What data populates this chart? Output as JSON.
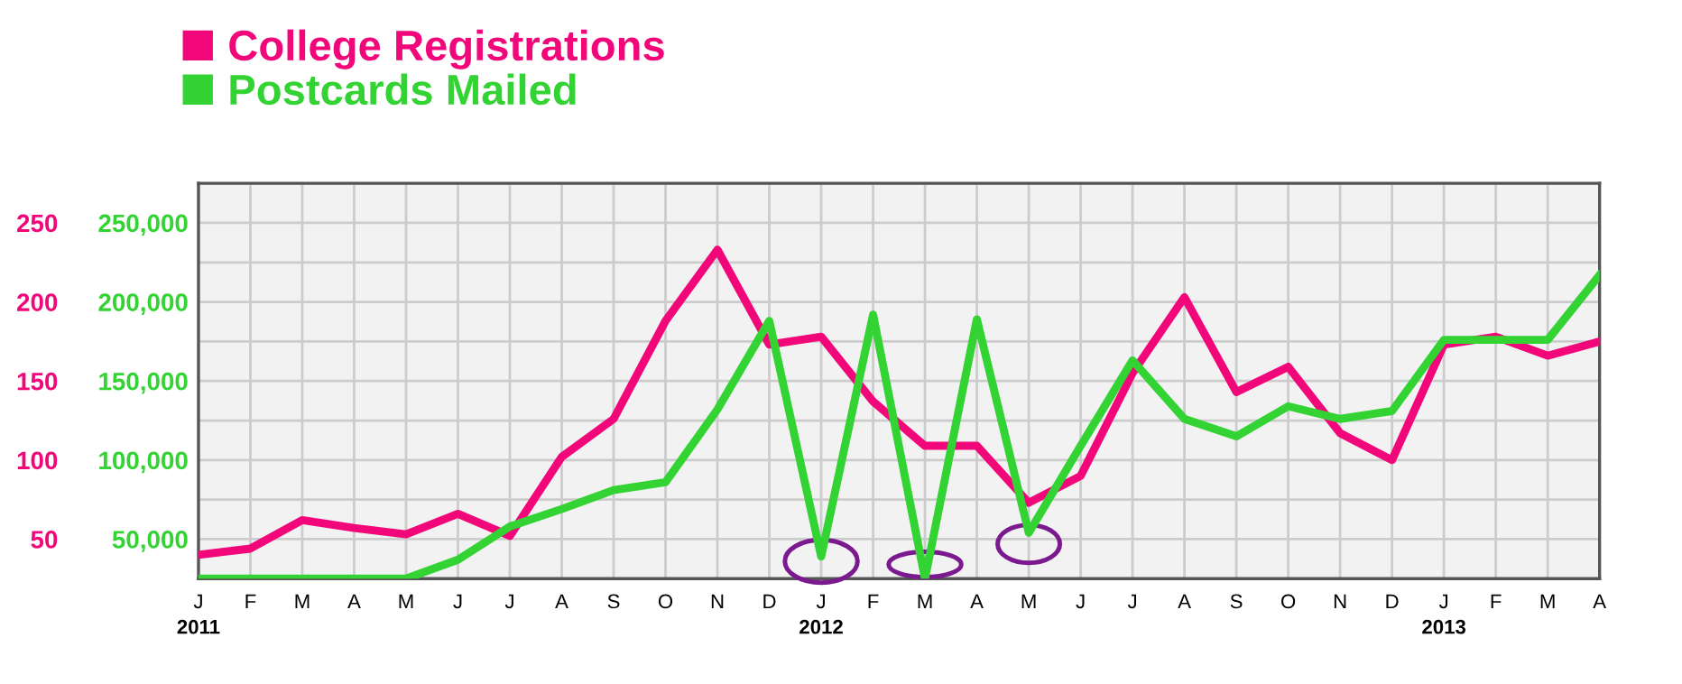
{
  "chart_data": {
    "type": "line",
    "categories": [
      "J",
      "F",
      "M",
      "A",
      "M",
      "J",
      "J",
      "A",
      "S",
      "O",
      "N",
      "D",
      "J",
      "F",
      "M",
      "A",
      "M",
      "J",
      "J",
      "A",
      "S",
      "O",
      "N",
      "D",
      "J",
      "F",
      "M",
      "A"
    ],
    "series": [
      {
        "name": "College Registrations",
        "color": "#f2077a",
        "values": [
          40,
          44,
          62,
          57,
          53,
          66,
          52,
          102,
          126,
          188,
          233,
          173,
          178,
          137,
          109,
          109,
          73,
          90,
          155,
          203,
          143,
          159,
          117,
          100,
          173,
          178,
          166,
          175
        ]
      },
      {
        "name": "Postcards Mailed",
        "color": "#33d333",
        "axis": "y2",
        "values": [
          25000,
          25000,
          25000,
          25000,
          25000,
          37000,
          58000,
          69000,
          81000,
          86000,
          132000,
          188000,
          39000,
          192000,
          25000,
          189000,
          54000,
          109000,
          163000,
          126000,
          115000,
          134000,
          126000,
          131000,
          176000,
          176000,
          176000,
          217000
        ]
      }
    ],
    "ylim": [
      25,
      275
    ],
    "yticks": [
      {
        "value": 25,
        "label": null
      },
      50,
      {
        "value": 75,
        "label": null
      },
      100,
      {
        "value": 125,
        "label": null
      },
      150,
      {
        "value": 175,
        "label": null
      },
      200,
      {
        "value": 225,
        "label": null
      },
      250,
      {
        "value": 275,
        "label": null
      }
    ],
    "y2lim": [
      25000,
      275000
    ],
    "y2ticks": [
      {
        "value": 50000,
        "label": "50,000"
      },
      {
        "value": 100000,
        "label": "100,000"
      },
      {
        "value": 150000,
        "label": "150,000"
      },
      {
        "value": 200000,
        "label": "200,000"
      },
      {
        "value": 250000,
        "label": "250,000"
      }
    ],
    "x2lim": [
      2011,
      2013.25
    ],
    "x2ticks": [
      2011,
      2012,
      2013
    ],
    "grid": true,
    "legend": "top left",
    "marker": "none",
    "line_style": "solid"
  }
}
